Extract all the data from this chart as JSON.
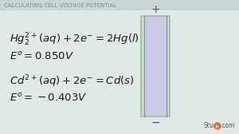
{
  "title": "CALCULATING CELL VOLTAGE POTENTIAL",
  "bg_color": "#dce8e8",
  "title_color": "#888888",
  "text_color": "#1a1a1a",
  "line1_eq": "$Hg_2^{2+}(aq) + 2e^{-} = 2Hg(l)$",
  "line1_val": "$E^o = 0.850V$",
  "line2_eq": "$Cd^{2+}(aq) + 2e^{-} = Cd(s)$",
  "line2_val": "$E^o = -0.403V$",
  "inner_color": "#cccce8",
  "outer_color_left": "#c8dcc8",
  "outer_color_right": "#c8dcc8",
  "separator_color": "#9090b8",
  "plus_color": "#555555",
  "minus_color": "#555555",
  "studycom_color": "#555555"
}
